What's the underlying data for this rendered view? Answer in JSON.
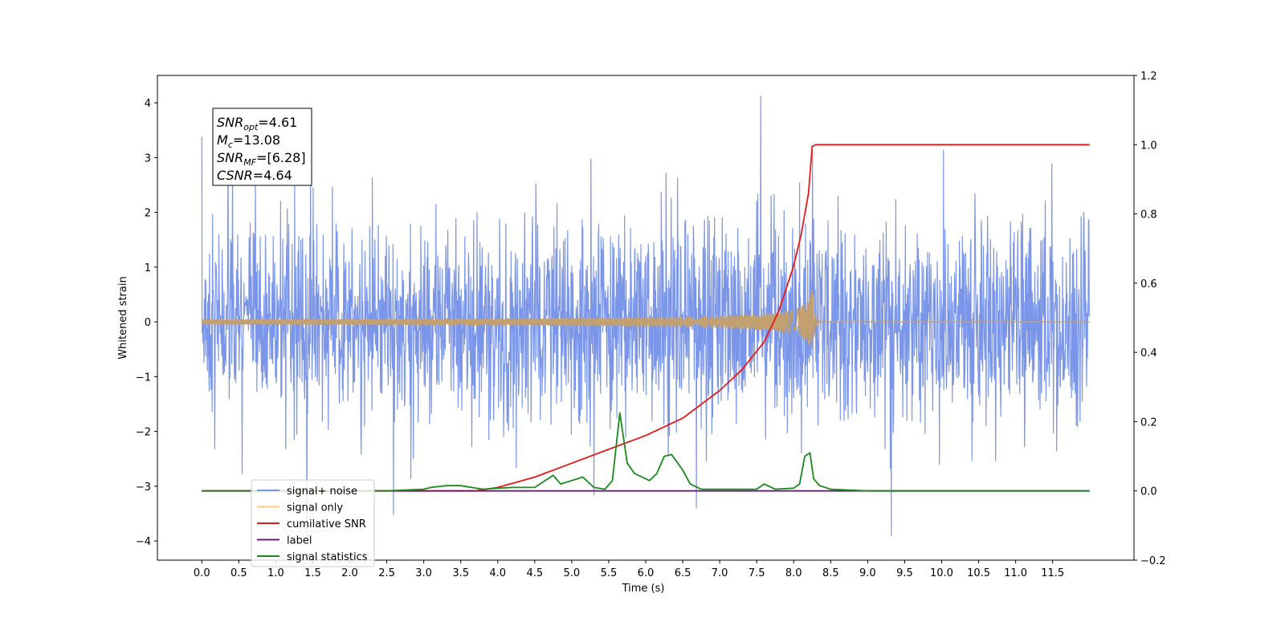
{
  "chart_data": {
    "type": "line",
    "xlabel": "Time (s)",
    "ylabel": "Whitened strain",
    "xlim": [
      -0.6,
      12.6
    ],
    "ylim": [
      -4.35,
      4.5
    ],
    "y2lim": [
      -0.2,
      1.2
    ],
    "x_ticks": [
      0.0,
      0.5,
      1.0,
      1.5,
      2.0,
      2.5,
      3.0,
      3.5,
      4.0,
      4.5,
      5.0,
      5.5,
      6.0,
      6.5,
      7.0,
      7.5,
      8.0,
      8.5,
      9.0,
      9.5,
      10.0,
      10.5,
      11.0,
      11.5
    ],
    "x_tick_labels": [
      "0.0",
      "0.5",
      "1.0",
      "1.5",
      "2.0",
      "2.5",
      "3.0",
      "3.5",
      "4.0",
      "4.5",
      "5.0",
      "5.5",
      "6.0",
      "6.5",
      "7.0",
      "7.5",
      "8.0",
      "8.5",
      "9.0",
      "9.5",
      "10.0",
      "10.5",
      "11.0",
      "11.5"
    ],
    "y_ticks": [
      -4,
      -3,
      -2,
      -1,
      0,
      1,
      2,
      3,
      4
    ],
    "y_tick_labels": [
      "−4",
      "−3",
      "−2",
      "−1",
      "0",
      "1",
      "2",
      "3",
      "4"
    ],
    "y2_ticks": [
      -0.2,
      0.0,
      0.2,
      0.4,
      0.6,
      0.8,
      1.0,
      1.2
    ],
    "y2_tick_labels": [
      "−0.2",
      "0.0",
      "0.2",
      "0.4",
      "0.6",
      "0.8",
      "1.0",
      "1.2"
    ],
    "grid": false,
    "legend_placement": "lower-left",
    "annotation_lines": [
      {
        "main": "SNR",
        "sub": "opt",
        "rest": "=4.61"
      },
      {
        "main": "M",
        "sub": "c",
        "rest": "=13.08"
      },
      {
        "main": "SNR",
        "sub": "MF",
        "rest": "=[6.28]"
      },
      {
        "main": "CSNR",
        "sub": "",
        "rest": "=4.64"
      }
    ],
    "series": [
      {
        "name": "signal+ noise",
        "color": "#7b96e8",
        "axis": "left",
        "kind": "noise",
        "x_range": [
          0.0,
          12.0
        ],
        "typical_amplitude": 1.4,
        "max": 4.12,
        "min": -3.9
      },
      {
        "name": "signal only",
        "color": "#c2a070",
        "axis": "left",
        "kind": "chirp",
        "x_range": [
          0.0,
          12.0
        ],
        "peak_time": 8.26,
        "peak_amplitude": 0.85
      },
      {
        "name": "cumilative SNR",
        "color": "#e8191c",
        "axis": "right",
        "x": [
          0.0,
          3.7,
          4.0,
          4.5,
          5.0,
          5.5,
          6.0,
          6.5,
          7.0,
          7.3,
          7.6,
          7.8,
          8.0,
          8.1,
          8.2,
          8.25,
          8.3,
          12.0
        ],
        "values": [
          0.0,
          0.0,
          0.01,
          0.04,
          0.08,
          0.12,
          0.16,
          0.21,
          0.29,
          0.35,
          0.43,
          0.52,
          0.65,
          0.74,
          0.86,
          0.995,
          1.0,
          1.0
        ]
      },
      {
        "name": "label",
        "color": "#6a1b7a",
        "axis": "right",
        "x": [
          0.0,
          12.0
        ],
        "values": [
          0.0,
          0.0
        ]
      },
      {
        "name": "signal statistics",
        "color": "#1a8a1a",
        "axis": "right",
        "x": [
          0.0,
          2.5,
          3.0,
          3.1,
          3.3,
          3.5,
          3.8,
          4.0,
          4.2,
          4.5,
          4.75,
          4.85,
          5.0,
          5.15,
          5.3,
          5.45,
          5.55,
          5.65,
          5.75,
          5.85,
          5.95,
          6.05,
          6.15,
          6.25,
          6.35,
          6.5,
          6.6,
          6.75,
          7.0,
          7.5,
          7.6,
          7.75,
          8.0,
          8.08,
          8.15,
          8.22,
          8.27,
          8.35,
          8.5,
          9.0,
          12.0
        ],
        "values": [
          0.0,
          0.0,
          0.005,
          0.01,
          0.015,
          0.015,
          0.005,
          0.008,
          0.01,
          0.01,
          0.045,
          0.02,
          0.03,
          0.04,
          0.01,
          0.005,
          0.03,
          0.225,
          0.08,
          0.05,
          0.04,
          0.03,
          0.05,
          0.1,
          0.105,
          0.06,
          0.02,
          0.005,
          0.005,
          0.005,
          0.02,
          0.005,
          0.008,
          0.02,
          0.1,
          0.11,
          0.035,
          0.015,
          0.005,
          0.0,
          0.0
        ]
      }
    ],
    "legend_entries": [
      {
        "label": "signal+ noise",
        "color": "#7b96e8"
      },
      {
        "label": "signal only",
        "color": "#ffc87a"
      },
      {
        "label": "cumilative SNR",
        "color": "#e8191c"
      },
      {
        "label": "label",
        "color": "#6a1b7a"
      },
      {
        "label": "signal statistics",
        "color": "#1a8a1a"
      }
    ]
  }
}
